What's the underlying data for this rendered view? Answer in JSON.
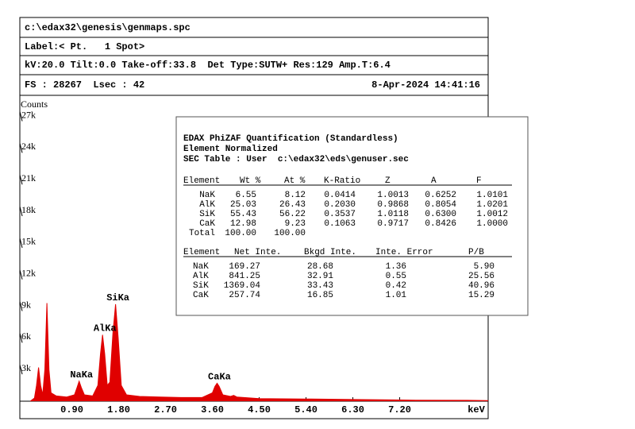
{
  "header": {
    "file": "c:\\edax32\\genesis\\genmaps.spc",
    "label": "Label:< Pt.   1 Spot>",
    "settings": "kV:20.0 Tilt:0.0 Take-off:33.8  Det Type:SUTW+ Res:129 Amp.T:6.4",
    "counts_info": "FS : 28267  Lsec : 42",
    "datetime": "8-Apr-2024 14:41:16"
  },
  "chart_data": {
    "type": "area",
    "ylabel": "Counts",
    "xlabel": "keV",
    "color": "#e00000",
    "x": [
      0.1,
      0.18,
      0.22,
      0.26,
      0.3,
      0.34,
      0.38,
      0.42,
      0.46,
      0.5,
      0.6,
      0.8,
      0.95,
      1.0,
      1.04,
      1.08,
      1.14,
      1.3,
      1.4,
      1.45,
      1.49,
      1.53,
      1.58,
      1.63,
      1.69,
      1.74,
      1.79,
      1.85,
      1.95,
      2.2,
      2.6,
      3.0,
      3.4,
      3.6,
      3.65,
      3.69,
      3.73,
      3.8,
      3.95,
      4.01,
      4.07,
      4.5,
      5.5,
      6.5,
      7.5,
      8.5,
      8.9
    ],
    "values": [
      0,
      300,
      1500,
      3200,
      1500,
      600,
      3000,
      9300,
      3000,
      800,
      500,
      400,
      600,
      1300,
      1900,
      1300,
      600,
      500,
      1500,
      4500,
      6300,
      4500,
      1500,
      1800,
      6500,
      9200,
      6000,
      1500,
      600,
      450,
      400,
      350,
      350,
      800,
      1400,
      1700,
      1400,
      600,
      450,
      550,
      400,
      250,
      200,
      150,
      100,
      80,
      60
    ],
    "xlim": [
      -0.1,
      8.9
    ],
    "ylim": [
      0,
      29000
    ],
    "xticks": [
      {
        "value": 0.9,
        "label": "0.90"
      },
      {
        "value": 1.8,
        "label": "1.80"
      },
      {
        "value": 2.7,
        "label": "2.70"
      },
      {
        "value": 3.6,
        "label": "3.60"
      },
      {
        "value": 4.5,
        "label": "4.50"
      },
      {
        "value": 5.4,
        "label": "5.40"
      },
      {
        "value": 6.3,
        "label": "6.30"
      },
      {
        "value": 7.2,
        "label": "7.20"
      }
    ],
    "yticks": [
      {
        "value": 3000,
        "label": "3k"
      },
      {
        "value": 6000,
        "label": "6k"
      },
      {
        "value": 9000,
        "label": "9k"
      },
      {
        "value": 12000,
        "label": "12k"
      },
      {
        "value": 15000,
        "label": "15k"
      },
      {
        "value": 18000,
        "label": "18k"
      },
      {
        "value": 21000,
        "label": "21k"
      },
      {
        "value": 24000,
        "label": "24k"
      },
      {
        "value": 27000,
        "label": "27k"
      }
    ],
    "annotations": [
      {
        "text": "NaKa",
        "x": 1.04
      },
      {
        "text": "AlKa",
        "x": 1.49
      },
      {
        "text": "SiKa",
        "x": 1.74
      },
      {
        "text": "CaKa",
        "x": 3.69
      }
    ]
  },
  "quant": {
    "title": "EDAX PhiZAF Quantification (Standardless)",
    "subtitle": "Element Normalized",
    "sec_table": "SEC Table : User  c:\\edax32\\eds\\genuser.sec",
    "table1": {
      "columns": [
        "Element",
        "Wt %",
        "At %",
        "K-Ratio",
        "Z",
        "A",
        "F"
      ],
      "rows": [
        [
          "NaK",
          "6.55",
          "8.12",
          "0.0414",
          "1.0013",
          "0.6252",
          "1.0101"
        ],
        [
          "AlK",
          "25.03",
          "26.43",
          "0.2030",
          "0.9868",
          "0.8054",
          "1.0201"
        ],
        [
          "SiK",
          "55.43",
          "56.22",
          "0.3537",
          "1.0118",
          "0.6300",
          "1.0012"
        ],
        [
          "CaK",
          "12.98",
          "9.23",
          "0.1063",
          "0.9717",
          "0.8426",
          "1.0000"
        ],
        [
          "Total",
          "100.00",
          "100.00"
        ]
      ]
    },
    "table2": {
      "columns": [
        "Element",
        "Net Inte.",
        "Bkgd Inte.",
        "Inte. Error",
        "P/B"
      ],
      "rows": [
        [
          "NaK",
          "169.27",
          "28.68",
          "1.36",
          "5.90"
        ],
        [
          "AlK",
          "841.25",
          "32.91",
          "0.55",
          "25.56"
        ],
        [
          "SiK",
          "1369.04",
          "33.43",
          "0.42",
          "40.96"
        ],
        [
          "CaK",
          "257.74",
          "16.85",
          "1.01",
          "15.29"
        ]
      ]
    }
  }
}
